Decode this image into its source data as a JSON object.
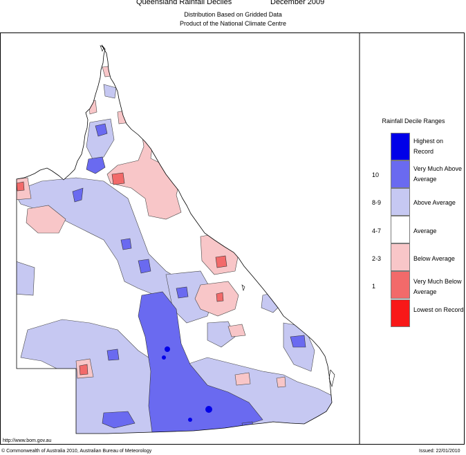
{
  "header": {
    "title": "Queensland Rainfall Deciles",
    "period": "December 2009",
    "subtitle1": "Distribution Based on Gridded Data",
    "subtitle2": "Product of the National Climate Centre"
  },
  "legend": {
    "title": "Rainfall Decile Ranges",
    "items": [
      {
        "label": "Highest on Record",
        "range": "",
        "color": "#0000e8"
      },
      {
        "label": "Very Much Above Average",
        "range": "10",
        "color": "#6a6af0"
      },
      {
        "label": "Above Average",
        "range": "8-9",
        "color": "#c6c8f2"
      },
      {
        "label": "Average",
        "range": "4-7",
        "color": "#ffffff"
      },
      {
        "label": "Below Average",
        "range": "2-3",
        "color": "#f8c6c8"
      },
      {
        "label": "Very Much Below Average",
        "range": "1",
        "color": "#f26a6a"
      },
      {
        "label": "Lowest on Record",
        "range": "",
        "color": "#f81818"
      }
    ]
  },
  "footer": {
    "url": "http://www.bom.gov.au",
    "copyright": "© Commonwealth of Australia 2010, Australian Bureau of Meteorology",
    "issued": "Issued: 22/01/2010"
  },
  "colors": {
    "record_high": "#0000e8",
    "very_much_above": "#6a6af0",
    "above": "#c6c8f2",
    "below": "#f8c6c8",
    "very_much_below": "#f26a6a"
  }
}
